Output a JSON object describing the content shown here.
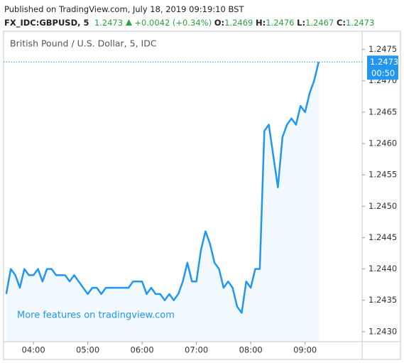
{
  "chart_data": {
    "type": "line",
    "published": "Published on TradingView.com, July 18, 2019 09:19:10 BST",
    "quote": {
      "symbol": "FX_IDC:GBPUSD, 5",
      "last": "1.2473",
      "change": "+0.0042 (+0.34%)",
      "open_label": "O:",
      "open": "1.2469",
      "high_label": "H:",
      "high": "1.2476",
      "low_label": "L:",
      "low": "1.2467",
      "close_label": "C:",
      "close": "1.2473"
    },
    "title": "British Pound / U.S. Dollar, 5, IDC",
    "watermark": "More features on tradingview.com",
    "x": [
      "03:30",
      "03:35",
      "03:40",
      "03:45",
      "03:50",
      "03:55",
      "04:00",
      "04:05",
      "04:10",
      "04:15",
      "04:20",
      "04:25",
      "04:30",
      "04:35",
      "04:40",
      "04:45",
      "04:50",
      "04:55",
      "05:00",
      "05:05",
      "05:10",
      "05:15",
      "05:20",
      "05:25",
      "05:30",
      "05:35",
      "05:40",
      "05:45",
      "05:50",
      "05:55",
      "06:00",
      "06:05",
      "06:10",
      "06:15",
      "06:20",
      "06:25",
      "06:30",
      "06:35",
      "06:40",
      "06:45",
      "06:50",
      "06:55",
      "07:00",
      "07:05",
      "07:10",
      "07:15",
      "07:20",
      "07:25",
      "07:30",
      "07:35",
      "07:40",
      "07:45",
      "07:50",
      "07:55",
      "08:00",
      "08:05",
      "08:10",
      "08:15",
      "08:20",
      "08:25",
      "08:30",
      "08:35",
      "08:40",
      "08:45",
      "08:50",
      "08:55",
      "09:00",
      "09:05",
      "09:10",
      "09:15"
    ],
    "series": [
      {
        "name": "GBPUSD",
        "color": "#2196f3",
        "values": [
          1.2436,
          1.244,
          1.2439,
          1.2437,
          1.244,
          1.2439,
          1.2439,
          1.244,
          1.2438,
          1.244,
          1.244,
          1.2439,
          1.2439,
          1.2439,
          1.2438,
          1.2439,
          1.2438,
          1.2437,
          1.2436,
          1.2437,
          1.2437,
          1.2436,
          1.2437,
          1.2437,
          1.2437,
          1.2437,
          1.2437,
          1.2437,
          1.2438,
          1.2438,
          1.2438,
          1.2436,
          1.2437,
          1.2436,
          1.2436,
          1.2435,
          1.2436,
          1.2435,
          1.2436,
          1.2438,
          1.2441,
          1.2438,
          1.2438,
          1.2443,
          1.2446,
          1.2444,
          1.2441,
          1.244,
          1.2437,
          1.2438,
          1.2437,
          1.2434,
          1.2433,
          1.2438,
          1.2437,
          1.244,
          1.244,
          1.2462,
          1.2463,
          1.2458,
          1.2453,
          1.2461,
          1.2463,
          1.2464,
          1.2463,
          1.2466,
          1.2465,
          1.2468,
          1.247,
          1.2473
        ]
      }
    ],
    "last_price": 1.2473,
    "countdown": "00:50",
    "ylim": [
      1.24284,
      1.24779
    ],
    "yticks": [
      {
        "value": 1.243,
        "label": "1.2430"
      },
      1.2435,
      {
        "value": 1.244,
        "label": "1.2440"
      },
      1.2445,
      {
        "value": 1.245,
        "label": "1.2450"
      },
      1.2455,
      {
        "value": 1.246,
        "label": "1.2460"
      },
      1.2465,
      {
        "value": 1.247,
        "label": "1.2470"
      },
      1.2475
    ],
    "xlim": [
      "03:27",
      "10:03"
    ],
    "xticks": [
      "04:00",
      "05:00",
      "06:00",
      "07:00",
      "08:00",
      "09:00"
    ]
  }
}
